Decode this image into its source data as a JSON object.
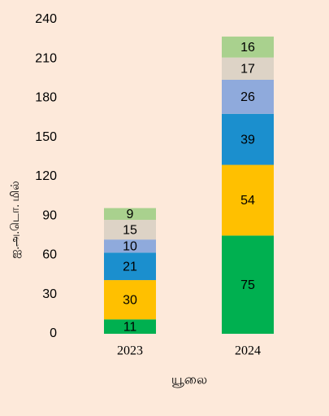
{
  "chart_data": {
    "type": "stacked_bar",
    "x_label": "யூலை",
    "y_label": "ஐ.அ.டொ. மில்",
    "categories": [
      "2023",
      "2024"
    ],
    "series": [
      {
        "color": "#00b050",
        "values": [
          11,
          75
        ]
      },
      {
        "color": "#ffc000",
        "values": [
          30,
          54
        ]
      },
      {
        "color": "#1b8fce",
        "values": [
          21,
          39
        ]
      },
      {
        "color": "#8faadc",
        "values": [
          10,
          26
        ]
      },
      {
        "color": "#ddd3c6",
        "values": [
          15,
          17
        ]
      },
      {
        "color": "#a9d18e",
        "values": [
          9,
          16
        ]
      }
    ],
    "ylim": [
      0,
      240
    ],
    "yticks": [
      0,
      30,
      60,
      90,
      120,
      150,
      180,
      210,
      240
    ],
    "grid": false,
    "background": "#fde9da"
  }
}
